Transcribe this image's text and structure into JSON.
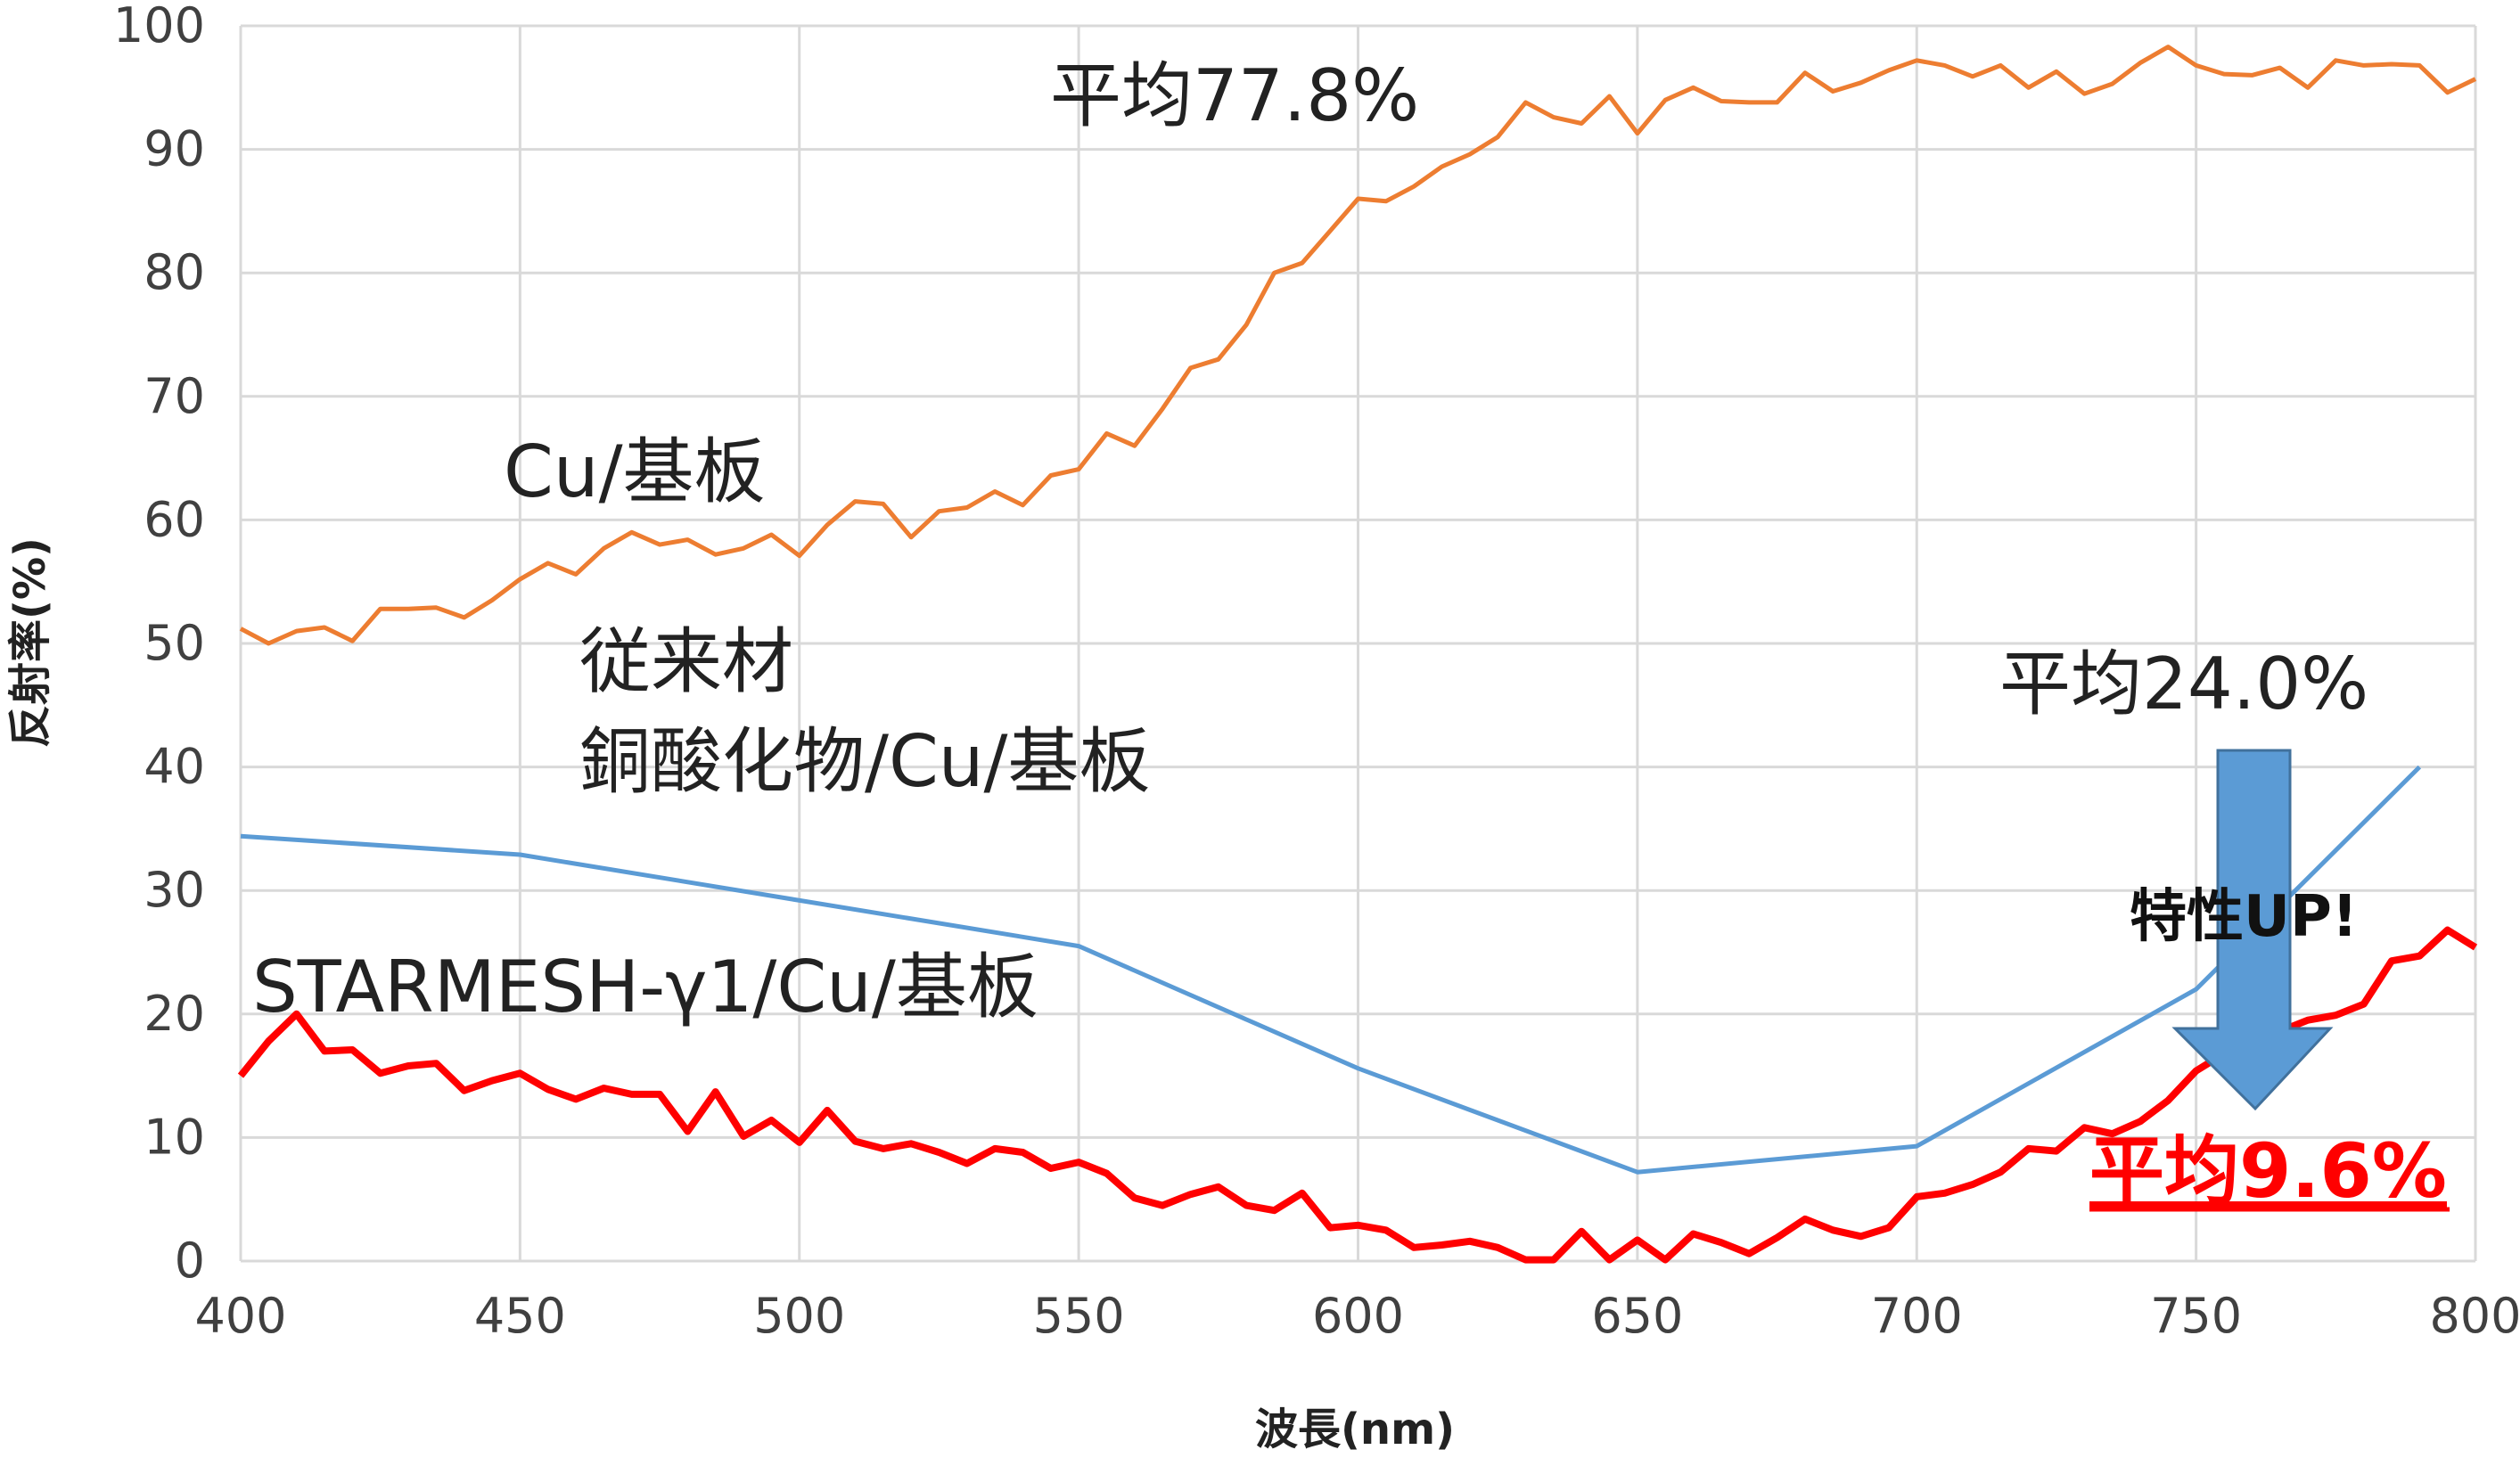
{
  "chart_data": {
    "type": "line",
    "title": "",
    "xlabel": "波長(nm)",
    "ylabel": "反射率(%)",
    "xlim": [
      400,
      800
    ],
    "ylim": [
      0,
      100
    ],
    "grid": true,
    "x_ticks": [
      "400",
      "450",
      "500",
      "550",
      "600",
      "650",
      "700",
      "750",
      "800"
    ],
    "y_ticks": [
      "0",
      "10",
      "20",
      "30",
      "40",
      "50",
      "60",
      "70",
      "80",
      "90",
      "100"
    ],
    "series": [
      {
        "name": "Cu/基板",
        "color": "#ED7D31",
        "x": [
          400,
          405,
          410,
          415,
          420,
          425,
          430,
          435,
          440,
          445,
          450,
          455,
          460,
          465,
          470,
          475,
          480,
          485,
          490,
          495,
          500,
          505,
          510,
          515,
          520,
          525,
          530,
          535,
          540,
          545,
          550,
          555,
          560,
          565,
          570,
          575,
          580,
          585,
          590,
          595,
          600,
          605,
          610,
          615,
          620,
          625,
          630,
          635,
          640,
          645,
          650,
          655,
          660,
          665,
          670,
          675,
          680,
          685,
          690,
          695,
          700,
          705,
          710,
          715,
          720,
          725,
          730,
          735,
          740,
          745,
          750,
          755,
          760,
          765,
          770,
          775,
          780,
          785,
          790,
          795,
          800
        ],
        "values": [
          51.2,
          50,
          51,
          51.3,
          50.2,
          52.8,
          52.8,
          52.9,
          52.1,
          53.5,
          55.2,
          56.5,
          55.6,
          57.7,
          59,
          58,
          58.4,
          57.2,
          57.7,
          58.8,
          57.1,
          59.6,
          61.5,
          61.3,
          58.6,
          60.7,
          61,
          62.3,
          61.2,
          63.6,
          64.1,
          67,
          66,
          69,
          72.3,
          73,
          75.8,
          80,
          80.8,
          83.4,
          86,
          85.8,
          87,
          88.6,
          89.6,
          91,
          93.8,
          92.6,
          92.1,
          94.3,
          91.3,
          94,
          95,
          93.9,
          93.8,
          93.8,
          96.2,
          94.7,
          95.4,
          96.4,
          97.2,
          96.8,
          95.9,
          96.8,
          95,
          96.3,
          94.5,
          95.3,
          97,
          98.3,
          96.8,
          96.1,
          96,
          96.6,
          95,
          97.2,
          96.8,
          96.9,
          96.8,
          94.6,
          95.7
        ]
      },
      {
        "name": "従来材 銅酸化物/Cu/基板",
        "color": "#5B9BD5",
        "x": [
          400,
          450,
          550,
          600,
          650,
          700,
          750,
          790
        ],
        "values": [
          34.4,
          32.9,
          25.5,
          15.6,
          7.2,
          9.3,
          22,
          40
        ]
      },
      {
        "name": "STARMESH-γ1/Cu/基板",
        "color": "#FF0000",
        "x": [
          400,
          405,
          410,
          415,
          420,
          425,
          430,
          435,
          440,
          445,
          450,
          455,
          460,
          465,
          470,
          475,
          480,
          485,
          490,
          495,
          500,
          505,
          510,
          515,
          520,
          525,
          530,
          535,
          540,
          545,
          550,
          555,
          560,
          565,
          570,
          575,
          580,
          585,
          590,
          595,
          600,
          605,
          610,
          615,
          620,
          625,
          630,
          635,
          640,
          645,
          650,
          655,
          660,
          665,
          670,
          675,
          680,
          685,
          690,
          695,
          700,
          705,
          710,
          715,
          720,
          725,
          730,
          735,
          740,
          745,
          750,
          755,
          760,
          765,
          770,
          775,
          780,
          785,
          790,
          795,
          800
        ],
        "values": [
          15,
          17.8,
          20,
          17,
          17.1,
          15.2,
          15.8,
          16,
          13.8,
          14.6,
          15.2,
          13.9,
          13.1,
          14,
          13.5,
          13.5,
          10.5,
          13.7,
          10.1,
          11.4,
          9.6,
          12.2,
          9.7,
          9.1,
          9.5,
          8.8,
          7.9,
          9.1,
          8.8,
          7.5,
          8,
          7.1,
          5.1,
          4.5,
          5.4,
          6,
          4.5,
          4.1,
          5.5,
          2.7,
          2.9,
          2.5,
          1.1,
          1.3,
          1.6,
          1.1,
          0.1,
          0.1,
          2.4,
          0.1,
          1.7,
          0.1,
          2.2,
          1.5,
          0.6,
          1.9,
          3.4,
          2.5,
          2,
          2.7,
          5.2,
          5.5,
          6.2,
          7.2,
          9.1,
          8.9,
          10.8,
          10.3,
          11.3,
          13,
          15.4,
          16.8,
          17.8,
          18.6,
          19.5,
          19.9,
          20.8,
          24.3,
          24.7,
          26.8,
          25.4
        ]
      }
    ],
    "annotations": {
      "cu_avg": "平均77.8%",
      "cu_label": "Cu/基板",
      "conv_label_1": "従来材",
      "conv_label_2": "銅酸化物/Cu/基板",
      "conv_avg": "平均24.0%",
      "star_label": "STARMESH-γ1/Cu/基板",
      "arrow_text": "特性UP!",
      "star_avg": "平均9.6%"
    },
    "arrow_color": "#5B9BD5",
    "highlight_color": "#FF0000"
  }
}
